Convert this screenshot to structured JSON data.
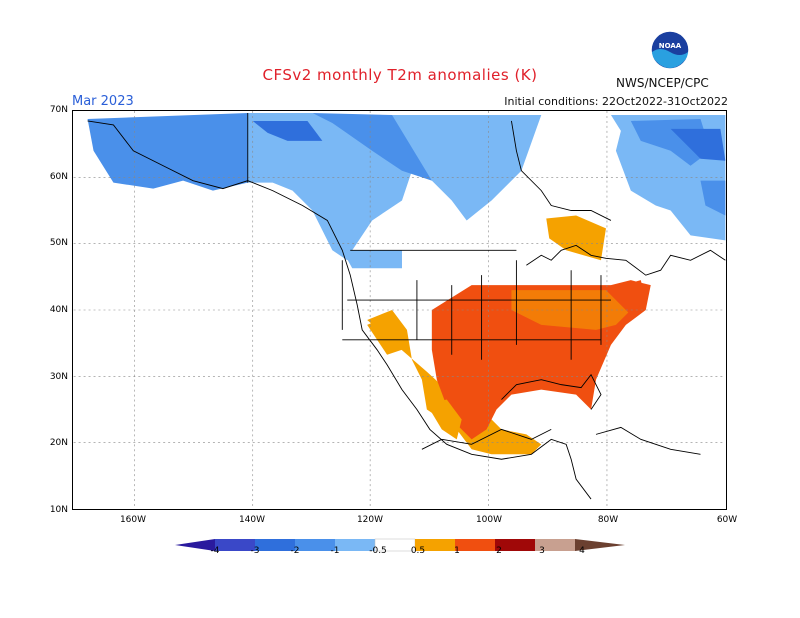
{
  "header": {
    "title": "CFSv2 monthly T2m anomalies (K)",
    "month": "Mar 2023",
    "initial_conditions": "Initial conditions: 22Oct2022-31Oct2022",
    "agency": "NWS/NCEP/CPC",
    "logo_text": "NOAA"
  },
  "axes": {
    "latitude_labels": [
      "70N",
      "60N",
      "50N",
      "40N",
      "30N",
      "20N",
      "10N"
    ],
    "longitude_labels": [
      "160W",
      "140W",
      "120W",
      "100W",
      "80W",
      "60W"
    ]
  },
  "colorbar": {
    "labels": [
      "-4",
      "-3",
      "-2",
      "-1",
      "-0.5",
      "0.5",
      "1",
      "2",
      "3",
      "4"
    ],
    "colors": [
      "#2a1a9e",
      "#3a48c8",
      "#2f6fdc",
      "#4a90ea",
      "#7ab8f5",
      "#ffffff",
      "#f5a200",
      "#f04f10",
      "#a00808",
      "#c8a090",
      "#6b4030"
    ]
  },
  "map_regions": {
    "cold": "Alaska, northwest Canada, Greenland coast",
    "warm": "Southern and eastern United States, Mexico, Gulf region"
  }
}
